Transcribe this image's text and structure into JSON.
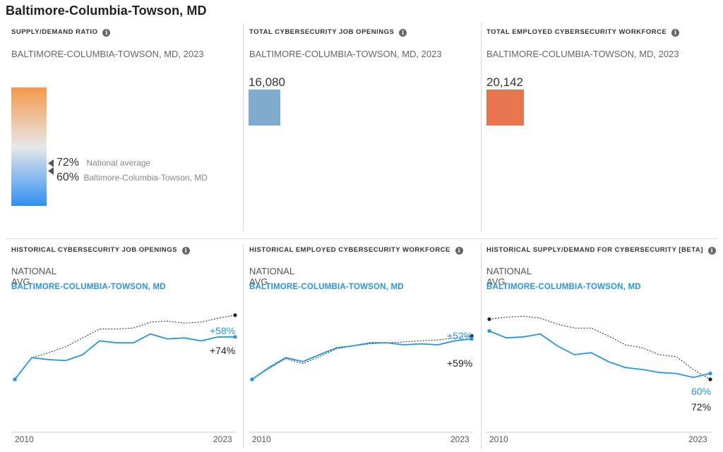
{
  "page_title": "Baltimore-Columbia-Towson, MD",
  "ratio_panel": {
    "title": "SUPPLY/DEMAND RATIO",
    "subtitle": "BALTIMORE-COLUMBIA-TOWSON, MD, 2023",
    "gradient_colors": [
      "#f4994a",
      "#e8e8e8",
      "#2f8ff0"
    ],
    "national": {
      "pct": "72%",
      "label": "National average",
      "value": 72
    },
    "local": {
      "pct": "60%",
      "label": "Baltimore-Columbia-Towson, MD",
      "value": 60
    }
  },
  "openings_panel": {
    "title": "TOTAL CYBERSECURITY JOB OPENINGS",
    "subtitle": "BALTIMORE-COLUMBIA-TOWSON, MD, 2023",
    "value": "16,080",
    "color": "#80abcd"
  },
  "workforce_panel": {
    "title": "TOTAL EMPLOYED CYBERSECURITY WORKFORCE",
    "subtitle": "BALTIMORE-COLUMBIA-TOWSON, MD, 2023",
    "value": "20,142",
    "color": "#e8754f"
  },
  "legend": {
    "national": "NATIONAL AVG",
    "local": "BALTIMORE-COLUMBIA-TOWSON, MD"
  },
  "colors": {
    "local": "#2196e8",
    "national": "#222222"
  },
  "chart_data": [
    {
      "type": "line",
      "title": "HISTORICAL CYBERSECURITY JOB OPENINGS",
      "x": [
        2010,
        2011,
        2012,
        2013,
        2014,
        2015,
        2016,
        2017,
        2018,
        2019,
        2020,
        2021,
        2022,
        2023
      ],
      "xticks": [
        "2010",
        "2023"
      ],
      "ylim": [
        0,
        100
      ],
      "series": [
        {
          "name": "NATIONAL AVG",
          "style": "dotted",
          "values": [
            30,
            52,
            57,
            63,
            72,
            81,
            81,
            82,
            88,
            89,
            87,
            88,
            92,
            95
          ],
          "end_label": "+74%"
        },
        {
          "name": "BALTIMORE-COLUMBIA-TOWSON, MD",
          "style": "solid",
          "values": [
            30,
            52,
            50,
            49,
            55,
            69,
            67,
            67,
            76,
            71,
            72,
            69,
            73,
            73
          ],
          "end_label": "+58%"
        }
      ]
    },
    {
      "type": "line",
      "title": "HISTORICAL EMPLOYED CYBERSECURITY WORKFORCE",
      "x": [
        2010,
        2011,
        2012,
        2013,
        2014,
        2015,
        2016,
        2017,
        2018,
        2019,
        2020,
        2021,
        2022,
        2023
      ],
      "xticks": [
        "2010",
        "2023"
      ],
      "ylim": [
        0,
        100
      ],
      "series": [
        {
          "name": "NATIONAL AVG",
          "style": "dotted",
          "values": [
            30,
            41,
            51,
            46,
            53,
            61,
            64,
            66,
            67,
            68,
            69,
            70,
            72,
            74
          ],
          "end_label": "+59%"
        },
        {
          "name": "BALTIMORE-COLUMBIA-TOWSON, MD",
          "style": "solid",
          "values": [
            30,
            42,
            52,
            48,
            55,
            62,
            64,
            67,
            67,
            65,
            66,
            65,
            69,
            71
          ],
          "end_label": "+52%"
        }
      ]
    },
    {
      "type": "line",
      "title": "HISTORICAL SUPPLY/DEMAND FOR CYBERSECURITY [BETA]",
      "x": [
        2010,
        2011,
        2012,
        2013,
        2014,
        2015,
        2016,
        2017,
        2018,
        2019,
        2020,
        2021,
        2022,
        2023
      ],
      "xticks": [
        "2010",
        "2023"
      ],
      "ylim": [
        0,
        100
      ],
      "series": [
        {
          "name": "NATIONAL AVG",
          "style": "dotted",
          "values": [
            91,
            93,
            94,
            92,
            86,
            82,
            82,
            74,
            65,
            62,
            55,
            53,
            40,
            30
          ],
          "end_label": "72%"
        },
        {
          "name": "BALTIMORE-COLUMBIA-TOWSON, MD",
          "style": "solid",
          "values": [
            79,
            72,
            73,
            76,
            64,
            55,
            57,
            48,
            42,
            40,
            37,
            36,
            32,
            36
          ],
          "end_label": "60%"
        }
      ]
    }
  ]
}
